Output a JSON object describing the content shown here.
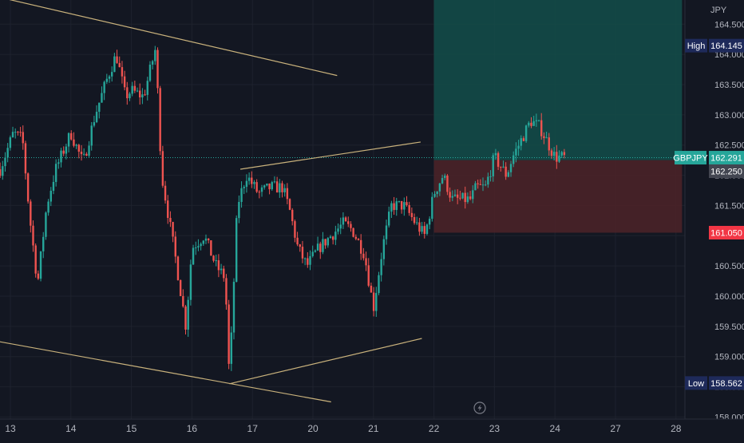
{
  "chart_data": {
    "type": "candlestick",
    "symbol": "GBPJPY",
    "currency": "JPY",
    "colors": {
      "background": "#131722",
      "grid": "#1e222d",
      "up": "#26a69a",
      "down": "#ef5350",
      "trendline": "#c9b27c",
      "target_zone": "#134e4a",
      "stop_zone": "#4a2228",
      "axis_text": "#b2b5be"
    },
    "y_axis": {
      "range": [
        157.9,
        164.9
      ],
      "ticks": [
        "158.000",
        "158.500",
        "159.000",
        "159.500",
        "160.000",
        "160.500",
        "161.000",
        "161.500",
        "162.000",
        "162.500",
        "163.000",
        "163.500",
        "164.000",
        "164.500"
      ]
    },
    "x_axis": {
      "ticks": [
        {
          "label": "13",
          "x": 13
        },
        {
          "label": "14",
          "x": 14
        },
        {
          "label": "15",
          "x": 15
        },
        {
          "label": "16",
          "x": 16
        },
        {
          "label": "17",
          "x": 17
        },
        {
          "label": "20",
          "x": 18
        },
        {
          "label": "21",
          "x": 19
        },
        {
          "label": "22",
          "x": 20
        },
        {
          "label": "23",
          "x": 21
        },
        {
          "label": "24",
          "x": 22
        },
        {
          "label": "27",
          "x": 23
        },
        {
          "label": "28",
          "x": 24
        }
      ]
    },
    "price_tags": {
      "high_label": "High",
      "high_value": "164.145",
      "symbol_label": "GBPJPY",
      "symbol_value": "162.291",
      "entry_value": "162.250",
      "stop_value": "161.050",
      "low_label": "Low",
      "low_value": "158.562"
    },
    "levels": {
      "high": 164.145,
      "last": 162.291,
      "entry": 162.25,
      "stop": 161.05,
      "low": 158.562
    },
    "position": {
      "x_start": 20.0,
      "x_end": 24.1,
      "entry": 162.25,
      "target": 165.0,
      "stop": 161.05
    },
    "trendlines": [
      {
        "x1": 12.8,
        "y1": 164.95,
        "x2": 18.4,
        "y2": 163.65
      },
      {
        "x1": 12.8,
        "y1": 159.25,
        "x2": 18.3,
        "y2": 158.25
      },
      {
        "x1": 16.62,
        "y1": 158.55,
        "x2": 19.8,
        "y2": 159.3
      },
      {
        "x1": 16.8,
        "y1": 162.1,
        "x2": 19.78,
        "y2": 162.55
      }
    ],
    "anchors": [
      [
        12.83,
        162.1
      ],
      [
        13.05,
        162.7
      ],
      [
        13.2,
        162.6
      ],
      [
        13.32,
        161.3
      ],
      [
        13.45,
        160.2
      ],
      [
        13.6,
        161.5
      ],
      [
        13.75,
        162.1
      ],
      [
        14.0,
        162.7
      ],
      [
        14.2,
        162.2
      ],
      [
        14.4,
        163.0
      ],
      [
        14.6,
        163.6
      ],
      [
        14.75,
        164.0
      ],
      [
        14.9,
        163.3
      ],
      [
        15.0,
        163.4
      ],
      [
        15.2,
        163.3
      ],
      [
        15.4,
        164.1
      ],
      [
        15.5,
        162.0
      ],
      [
        15.6,
        161.4
      ],
      [
        15.75,
        160.5
      ],
      [
        15.9,
        159.5
      ],
      [
        16.0,
        160.8
      ],
      [
        16.2,
        161.0
      ],
      [
        16.4,
        160.5
      ],
      [
        16.55,
        160.3
      ],
      [
        16.62,
        158.6
      ],
      [
        16.75,
        161.5
      ],
      [
        16.9,
        162.0
      ],
      [
        17.1,
        161.7
      ],
      [
        17.3,
        161.8
      ],
      [
        17.5,
        161.8
      ],
      [
        17.62,
        161.4
      ],
      [
        17.75,
        160.8
      ],
      [
        17.9,
        160.5
      ],
      [
        18.1,
        160.8
      ],
      [
        18.3,
        161.0
      ],
      [
        18.5,
        161.2
      ],
      [
        18.65,
        161.1
      ],
      [
        18.85,
        160.7
      ],
      [
        19.0,
        159.8
      ],
      [
        19.15,
        160.8
      ],
      [
        19.3,
        161.5
      ],
      [
        19.5,
        161.5
      ],
      [
        19.7,
        161.2
      ],
      [
        19.85,
        161.0
      ],
      [
        20.0,
        161.7
      ],
      [
        20.15,
        162.0
      ],
      [
        20.3,
        161.6
      ],
      [
        20.45,
        161.6
      ],
      [
        20.6,
        161.6
      ],
      [
        20.7,
        161.8
      ],
      [
        20.85,
        161.8
      ],
      [
        21.0,
        162.3
      ],
      [
        21.2,
        162.0
      ],
      [
        21.3,
        162.3
      ],
      [
        21.45,
        162.6
      ],
      [
        21.6,
        162.9
      ],
      [
        21.75,
        162.8
      ],
      [
        21.85,
        162.6
      ],
      [
        22.0,
        162.3
      ],
      [
        22.1,
        162.3
      ],
      [
        22.17,
        162.29
      ]
    ]
  }
}
